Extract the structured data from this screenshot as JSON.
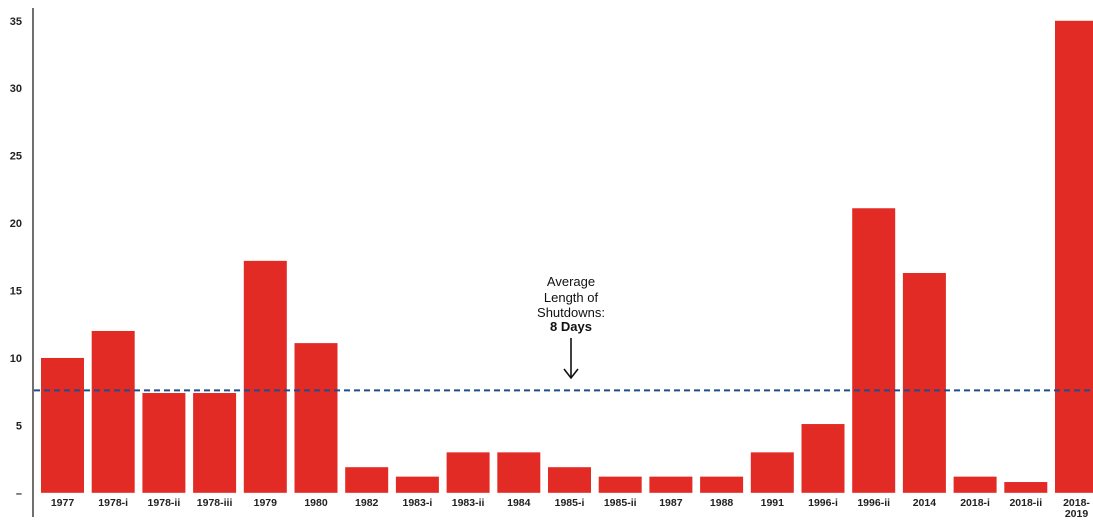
{
  "chart_data": {
    "type": "bar",
    "categories": [
      "1977",
      "1978-i",
      "1978-ii",
      "1978-iii",
      "1979",
      "1980",
      "1982",
      "1983-i",
      "1983-ii",
      "1984",
      "1985-i",
      "1985-ii",
      "1987",
      "1988",
      "1991",
      "1996-i",
      "1996-ii",
      "2014",
      "2018-i",
      "2018-ii",
      "2018-2019"
    ],
    "category_lines": [
      [
        "1977"
      ],
      [
        "1978-i"
      ],
      [
        "1978-ii"
      ],
      [
        "1978-iii"
      ],
      [
        "1979"
      ],
      [
        "1980"
      ],
      [
        "1982"
      ],
      [
        "1983-i"
      ],
      [
        "1983-ii"
      ],
      [
        "1984"
      ],
      [
        "1985-i"
      ],
      [
        "1985-ii"
      ],
      [
        "1987"
      ],
      [
        "1988"
      ],
      [
        "1991"
      ],
      [
        "1996-i"
      ],
      [
        "1996-ii"
      ],
      [
        "2014"
      ],
      [
        "2018-i"
      ],
      [
        "2018-ii"
      ],
      [
        "2018-",
        "2019"
      ]
    ],
    "values": [
      10,
      12,
      7.4,
      7.4,
      17.2,
      11.1,
      1.9,
      1.2,
      3.0,
      3.0,
      1.9,
      1.2,
      1.2,
      1.2,
      3.0,
      5.1,
      21.1,
      16.3,
      1.2,
      0.8,
      35
    ],
    "y_ticks": [
      "–",
      "5",
      "10",
      "15",
      "20",
      "25",
      "30",
      "35"
    ],
    "y_tick_values": [
      0,
      5,
      10,
      15,
      20,
      25,
      30,
      35
    ],
    "ylim": [
      -1.2,
      35.8
    ],
    "average": 7.6,
    "annotation": {
      "lines": [
        "Average",
        "Length of",
        "Shutdowns:"
      ],
      "bold": "8 Days"
    },
    "colors": {
      "bar": "#e32b26",
      "average_line": "#1f4e8c",
      "axis": "#222222"
    },
    "grid": false,
    "legend": "none"
  }
}
